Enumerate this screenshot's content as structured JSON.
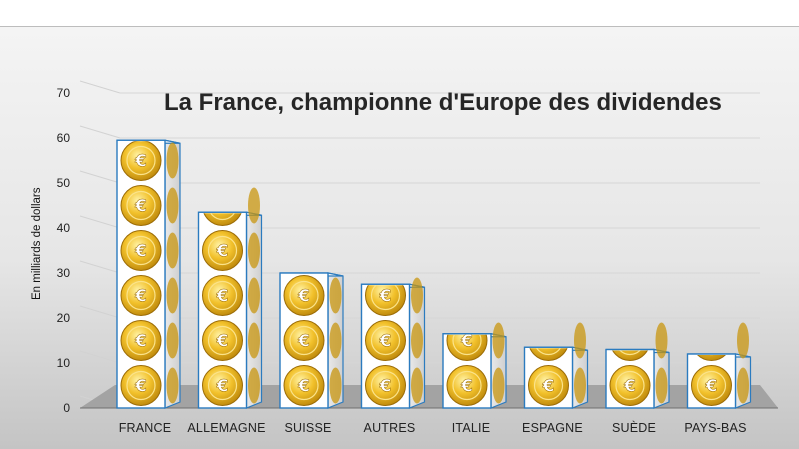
{
  "chart_data": {
    "type": "bar",
    "title": "La France, championne d'Europe des dividendes",
    "xlabel": "",
    "ylabel": "En milliards de dollars",
    "categories": [
      "FRANCE",
      "ALLEMAGNE",
      "SUISSE",
      "AUTRES",
      "ITALIE",
      "ESPAGNE",
      "SUÈDE",
      "PAYS-BAS"
    ],
    "values": [
      59.5,
      43.5,
      30,
      27.5,
      16.5,
      13.5,
      13,
      12
    ],
    "ylim": [
      0,
      70
    ],
    "yticks": [
      "0",
      "10",
      "20",
      "30",
      "40",
      "50",
      "60",
      "70"
    ],
    "grid": true,
    "legend": "none",
    "bar_style": "stacked euro coin cubes",
    "coin_symbol": "€",
    "colors": {
      "background_top": "#f2f2f2",
      "background_bottom": "#c9c9c9",
      "floor": "#9e9e9e",
      "cube_face": "#ffffff",
      "cube_edge": "#2b7bbf",
      "coin_gold": "#e8b61a",
      "coin_dark": "#b07d0a"
    }
  }
}
